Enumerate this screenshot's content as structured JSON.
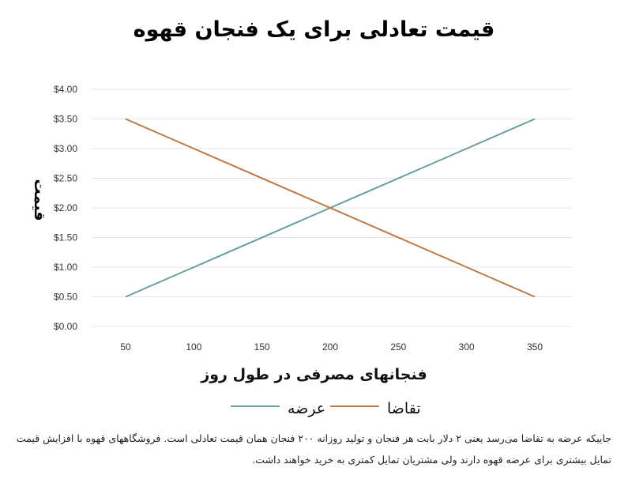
{
  "chart_data": {
    "type": "line",
    "title": "قیمت تعادلی برای یک فنجان قهوه",
    "xlabel": "فنجانهای مصرفی در طول روز",
    "ylabel": "قیمت",
    "x_ticks": [
      "50",
      "100",
      "150",
      "200",
      "250",
      "300",
      "350"
    ],
    "y_ticks": [
      "$0.00",
      "$0.50",
      "$1.00",
      "$1.50",
      "$2.00",
      "$2.50",
      "$3.00",
      "$3.50",
      "$4.00"
    ],
    "xlim": [
      50,
      350
    ],
    "ylim": [
      0,
      4
    ],
    "grid": true,
    "legend_position": "bottom",
    "series": [
      {
        "name": "عرضه",
        "color": "#6a9ea0",
        "x": [
          50,
          350
        ],
        "y": [
          0.5,
          3.5
        ]
      },
      {
        "name": "تقاضا",
        "color": "#c07a45",
        "x": [
          50,
          350
        ],
        "y": [
          3.5,
          0.5
        ]
      }
    ]
  },
  "caption": "جاییکه عرضه به تقاضا می‌رسد یعنی ۲ دلار بابت هر فنجان و تولید روزانه ۲۰۰ فنجان  همان قیمت تعادلی است. فروشگاههای قهوه با افزایش قیمت تمایل بیشتری برای عرضه قهوه دارند ولی مشتریان تمایل کمتری به خرید خواهند داشت."
}
